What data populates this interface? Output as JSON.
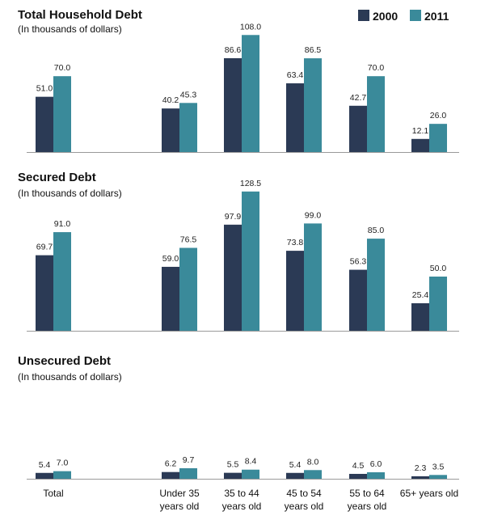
{
  "legend": {
    "series_a": {
      "label": "2000",
      "color": "#2b3a55"
    },
    "series_b": {
      "label": "2011",
      "color": "#3a8a9a"
    }
  },
  "chart_data": [
    {
      "type": "bar",
      "title": "Total Household Debt",
      "subtitle": "(In thousands of dollars)",
      "ylim": [
        0,
        120
      ],
      "series": [
        {
          "name": "2000",
          "values": [
            51.0,
            40.2,
            86.6,
            63.4,
            42.7,
            12.1
          ]
        },
        {
          "name": "2011",
          "values": [
            70.0,
            45.3,
            108.0,
            86.5,
            70.0,
            26.0
          ]
        }
      ]
    },
    {
      "type": "bar",
      "title": "Secured Debt",
      "subtitle": "(In thousands of dollars)",
      "ylim": [
        0,
        140
      ],
      "series": [
        {
          "name": "2000",
          "values": [
            69.7,
            59.0,
            97.9,
            73.8,
            56.3,
            25.4
          ]
        },
        {
          "name": "2011",
          "values": [
            91.0,
            76.5,
            128.5,
            99.0,
            85.0,
            50.0
          ]
        }
      ]
    },
    {
      "type": "bar",
      "title": "Unsecured Debt",
      "subtitle": "(In thousands of dollars)",
      "ylim": [
        0,
        120
      ],
      "series": [
        {
          "name": "2000",
          "values": [
            5.4,
            6.2,
            5.5,
            5.4,
            4.5,
            2.3
          ]
        },
        {
          "name": "2011",
          "values": [
            7.0,
            9.7,
            8.4,
            8.0,
            6.0,
            3.5
          ]
        }
      ]
    }
  ],
  "categories": [
    [
      "Total"
    ],
    [
      "Under 35",
      "years old"
    ],
    [
      "35 to 44",
      "years old"
    ],
    [
      "45 to 54",
      "years old"
    ],
    [
      "55 to 64",
      "years old"
    ],
    [
      "65+ years old"
    ]
  ]
}
